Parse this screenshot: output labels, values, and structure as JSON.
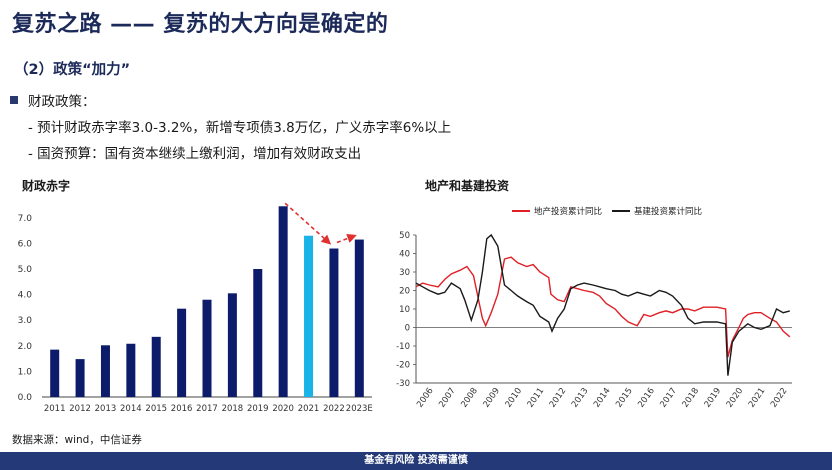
{
  "header": {
    "title": "复苏之路 —— 复苏的大方向是确定的",
    "subtitle": "（2）政策“加力”"
  },
  "content": {
    "bullet": "财政政策：",
    "sub1": "- 预计财政赤字率3.0-3.2%，新增专项债3.8万亿，广义赤字率6%以上",
    "sub2": "- 国资预算：国有资本继续上缴利润，增加有效财政支出"
  },
  "source": "数据来源：wind，中信证券",
  "footer": "基金有风险  投资需谨慎",
  "colors": {
    "bar": "#0d1b6b",
    "bar_highlight": "#19b3e8",
    "arrow": "#e03030",
    "line_real_estate": "#e01f26",
    "line_infra": "#1a1a1a"
  },
  "chart_data": [
    {
      "type": "bar",
      "title": "财政赤字",
      "categories": [
        "2011",
        "2012",
        "2013",
        "2014",
        "2015",
        "2016",
        "2017",
        "2018",
        "2019",
        "2020",
        "2021",
        "2022",
        "2023E"
      ],
      "values": [
        1.85,
        1.48,
        2.02,
        2.08,
        2.35,
        3.45,
        3.8,
        4.05,
        5.0,
        7.45,
        6.3,
        5.8,
        6.15
      ],
      "highlight_index": 10,
      "ylim": [
        0,
        7.5
      ],
      "yticks": [
        "0.0",
        "1.0",
        "2.0",
        "3.0",
        "4.0",
        "5.0",
        "6.0",
        "7.0"
      ],
      "annotation": "dashed arrow from 2020 to 2022 and from 2022 to 2023E"
    },
    {
      "type": "line",
      "title": "地产和基建投资",
      "ylim": [
        -30,
        50
      ],
      "yticks": [
        "50",
        "40",
        "30",
        "20",
        "10",
        "0",
        "-10",
        "-20",
        "-30"
      ],
      "xticks": [
        "2006",
        "2007",
        "2008",
        "2009",
        "2010",
        "2011",
        "2012",
        "2013",
        "2014",
        "2015",
        "2016",
        "2017",
        "2018",
        "2019",
        "2020",
        "2021",
        "2022"
      ],
      "legend_position": "top",
      "series": [
        {
          "name": "地产投资累计同比",
          "x": [
            2006.0,
            2006.3,
            2006.6,
            2007.0,
            2007.3,
            2007.6,
            2008.0,
            2008.3,
            2008.6,
            2009.0,
            2009.15,
            2009.4,
            2009.7,
            2010.0,
            2010.3,
            2010.6,
            2011.0,
            2011.3,
            2011.6,
            2012.0,
            2012.1,
            2012.4,
            2012.7,
            2013.0,
            2013.3,
            2013.6,
            2014.0,
            2014.3,
            2014.6,
            2015.0,
            2015.3,
            2015.6,
            2016.0,
            2016.3,
            2016.6,
            2017.0,
            2017.3,
            2017.6,
            2018.0,
            2018.3,
            2018.6,
            2019.0,
            2019.3,
            2019.6,
            2020.0,
            2020.1,
            2020.3,
            2020.6,
            2020.8,
            2021.0,
            2021.3,
            2021.6,
            2022.0,
            2022.3,
            2022.6,
            2022.9
          ],
          "y": [
            22,
            24,
            23,
            22,
            26,
            29,
            31,
            33,
            28,
            5,
            1,
            8,
            18,
            37,
            38,
            35,
            33,
            34,
            30,
            27,
            18,
            15,
            14,
            22,
            21,
            20,
            19,
            17,
            13,
            10,
            6,
            3,
            1,
            7,
            6,
            8,
            9,
            8,
            10,
            10,
            9,
            11,
            11,
            11,
            10,
            -16,
            -7,
            0,
            5,
            7,
            8,
            8,
            5,
            3,
            -2,
            -5
          ]
        },
        {
          "name": "基建投资累计同比",
          "x": [
            2006.0,
            2006.3,
            2006.6,
            2007.0,
            2007.3,
            2007.6,
            2008.0,
            2008.2,
            2008.5,
            2008.8,
            2009.0,
            2009.2,
            2009.4,
            2009.7,
            2010.0,
            2010.3,
            2010.6,
            2011.0,
            2011.3,
            2011.6,
            2012.0,
            2012.15,
            2012.4,
            2012.7,
            2013.0,
            2013.3,
            2013.6,
            2014.0,
            2014.3,
            2014.6,
            2015.0,
            2015.3,
            2015.6,
            2016.0,
            2016.3,
            2016.6,
            2017.0,
            2017.3,
            2017.6,
            2018.0,
            2018.3,
            2018.6,
            2019.0,
            2019.3,
            2019.6,
            2020.0,
            2020.1,
            2020.3,
            2020.6,
            2021.0,
            2021.3,
            2021.6,
            2022.0,
            2022.3,
            2022.6,
            2022.9
          ],
          "y": [
            24,
            22,
            20,
            18,
            19,
            24,
            21,
            15,
            4,
            15,
            30,
            48,
            50,
            44,
            23,
            20,
            17,
            14,
            12,
            6,
            3,
            -2,
            5,
            10,
            21,
            23,
            24,
            23,
            22,
            21,
            20,
            18,
            17,
            19,
            18,
            17,
            20,
            19,
            17,
            12,
            5,
            2,
            3,
            3,
            3,
            2,
            -26,
            -8,
            -2,
            2,
            0,
            -1,
            1,
            10,
            8,
            9
          ]
        }
      ]
    }
  ]
}
